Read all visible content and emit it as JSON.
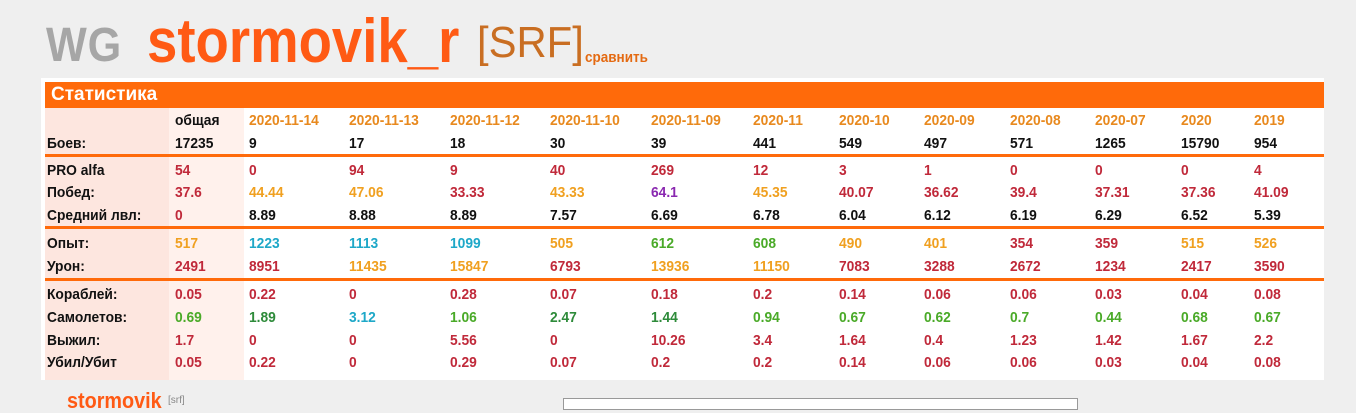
{
  "header": {
    "logo": "WG",
    "player_name": "stormovik_r",
    "clan_tag": "[SRF]",
    "compare_link": "сравнить"
  },
  "panel": {
    "title": "Статистика"
  },
  "columns": [
    "общая",
    "2020-11-14",
    "2020-11-13",
    "2020-11-12",
    "2020-11-10",
    "2020-11-09",
    "2020-11",
    "2020-10",
    "2020-09",
    "2020-08",
    "2020-07",
    "2020",
    "2019"
  ],
  "colors": {
    "accent": "#ff6a0a",
    "red": "#c0293a",
    "orange": "#f0a020",
    "cyan": "#1ea8c8",
    "green": "#4aaa28",
    "darkgreen": "#2e8b3a",
    "purple": "#8a28b0",
    "black": "#111111"
  },
  "rows": [
    {
      "label": "Боев:",
      "values": [
        "17235",
        "9",
        "17",
        "18",
        "30",
        "39",
        "441",
        "549",
        "497",
        "571",
        "1265",
        "15790",
        "954"
      ],
      "colors": [
        "black",
        "black",
        "black",
        "black",
        "black",
        "black",
        "black",
        "black",
        "black",
        "black",
        "black",
        "black",
        "black"
      ]
    },
    {
      "label": "PRO alfa",
      "values": [
        "54",
        "0",
        "94",
        "9",
        "40",
        "269",
        "12",
        "3",
        "1",
        "0",
        "0",
        "0",
        "4"
      ],
      "colors": [
        "red",
        "red",
        "red",
        "red",
        "red",
        "red",
        "red",
        "red",
        "red",
        "red",
        "red",
        "red",
        "red"
      ]
    },
    {
      "label": "Побед:",
      "values": [
        "37.6",
        "44.44",
        "47.06",
        "33.33",
        "43.33",
        "64.1",
        "45.35",
        "40.07",
        "36.62",
        "39.4",
        "37.31",
        "37.36",
        "41.09"
      ],
      "colors": [
        "red",
        "orange",
        "orange",
        "red",
        "orange",
        "purple",
        "orange",
        "red",
        "red",
        "red",
        "red",
        "red",
        "red"
      ]
    },
    {
      "label": "Средний лвл:",
      "values": [
        "0",
        "8.89",
        "8.88",
        "8.89",
        "7.57",
        "6.69",
        "6.78",
        "6.04",
        "6.12",
        "6.19",
        "6.29",
        "6.52",
        "5.39"
      ],
      "colors": [
        "red",
        "black",
        "black",
        "black",
        "black",
        "black",
        "black",
        "black",
        "black",
        "black",
        "black",
        "black",
        "black"
      ]
    },
    {
      "label": "Опыт:",
      "values": [
        "517",
        "1223",
        "1113",
        "1099",
        "505",
        "612",
        "608",
        "490",
        "401",
        "354",
        "359",
        "515",
        "526"
      ],
      "colors": [
        "orange",
        "cyan",
        "cyan",
        "cyan",
        "orange",
        "green",
        "green",
        "orange",
        "orange",
        "red",
        "red",
        "orange",
        "orange"
      ]
    },
    {
      "label": "Урон:",
      "values": [
        "2491",
        "8951",
        "11435",
        "15847",
        "6793",
        "13936",
        "11150",
        "7083",
        "3288",
        "2672",
        "1234",
        "2417",
        "3590"
      ],
      "colors": [
        "red",
        "red",
        "orange",
        "orange",
        "red",
        "orange",
        "orange",
        "red",
        "red",
        "red",
        "red",
        "red",
        "red"
      ]
    },
    {
      "label": "Кораблей:",
      "values": [
        "0.05",
        "0.22",
        "0",
        "0.28",
        "0.07",
        "0.18",
        "0.2",
        "0.14",
        "0.06",
        "0.06",
        "0.03",
        "0.04",
        "0.08"
      ],
      "colors": [
        "red",
        "red",
        "red",
        "red",
        "red",
        "red",
        "red",
        "red",
        "red",
        "red",
        "red",
        "red",
        "red"
      ]
    },
    {
      "label": "Самолетов:",
      "values": [
        "0.69",
        "1.89",
        "3.12",
        "1.06",
        "2.47",
        "1.44",
        "0.94",
        "0.67",
        "0.62",
        "0.7",
        "0.44",
        "0.68",
        "0.67"
      ],
      "colors": [
        "green",
        "darkgreen",
        "cyan",
        "green",
        "darkgreen",
        "darkgreen",
        "green",
        "green",
        "green",
        "green",
        "green",
        "green",
        "green"
      ]
    },
    {
      "label": "Выжил:",
      "values": [
        "1.7",
        "0",
        "0",
        "5.56",
        "0",
        "10.26",
        "3.4",
        "1.64",
        "0.4",
        "1.23",
        "1.42",
        "1.67",
        "2.2"
      ],
      "colors": [
        "red",
        "red",
        "red",
        "red",
        "red",
        "red",
        "red",
        "red",
        "red",
        "red",
        "red",
        "red",
        "red"
      ]
    },
    {
      "label": "Убил/Убит",
      "values": [
        "0.05",
        "0.22",
        "0",
        "0.29",
        "0.07",
        "0.2",
        "0.2",
        "0.14",
        "0.06",
        "0.06",
        "0.03",
        "0.04",
        "0.08"
      ],
      "colors": [
        "red",
        "red",
        "red",
        "red",
        "red",
        "red",
        "red",
        "red",
        "red",
        "red",
        "red",
        "red",
        "red"
      ]
    }
  ],
  "footer": {
    "player_name": "stormovik",
    "clan_tag": "[srf]"
  }
}
